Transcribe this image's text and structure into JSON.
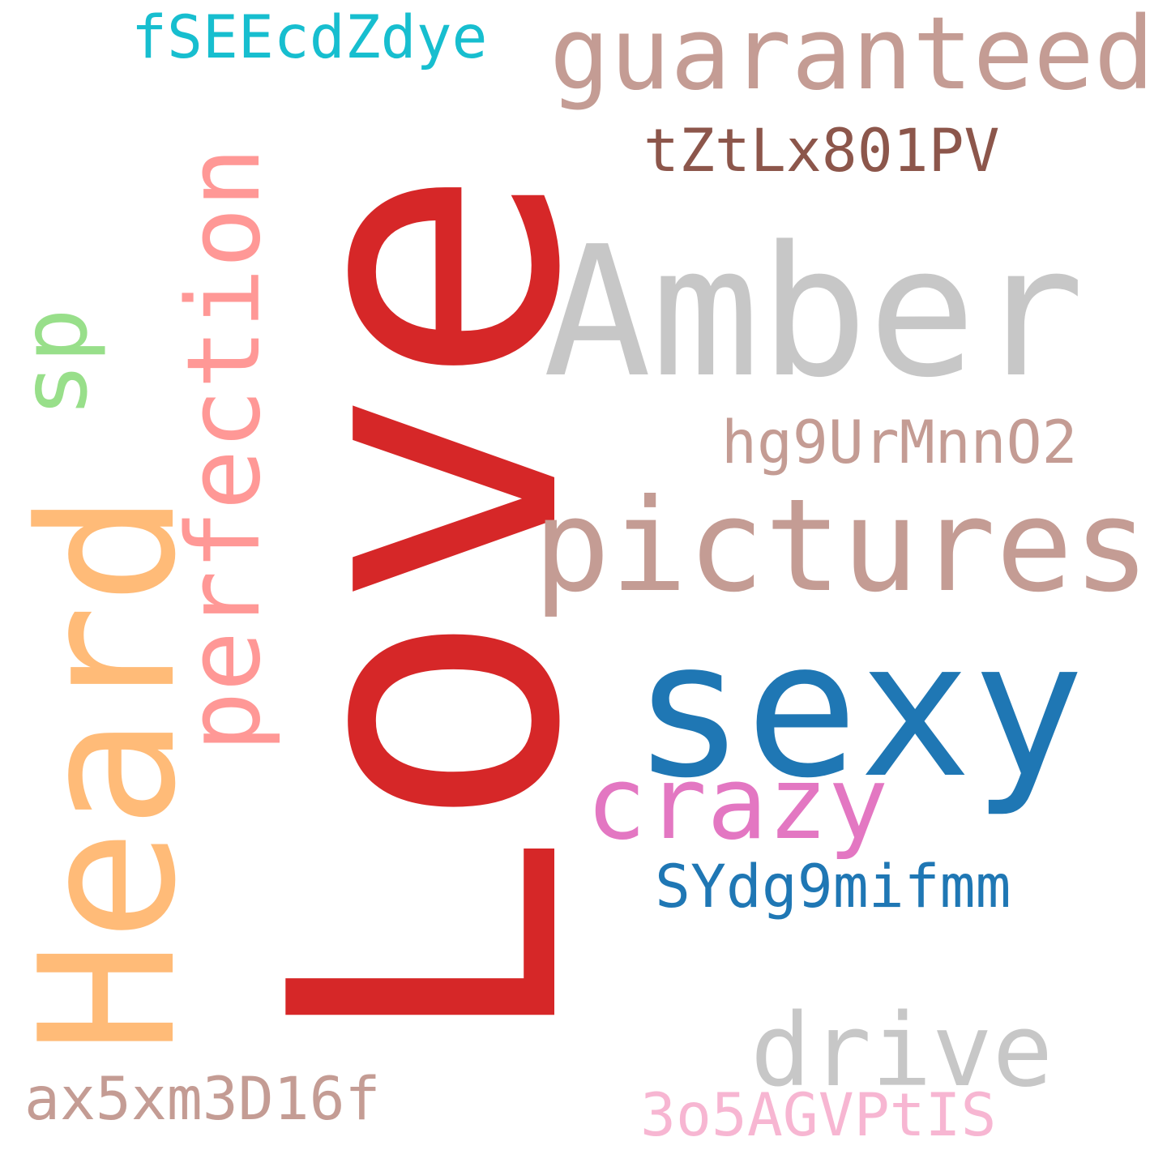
{
  "words": [
    {
      "text": "Love",
      "color": "#d62728"
    },
    {
      "text": "Amber",
      "color": "#c7c7c7"
    },
    {
      "text": "Heard",
      "color": "#ffbb78"
    },
    {
      "text": "sexy",
      "color": "#1f77b4"
    },
    {
      "text": "pictures",
      "color": "#c49c94"
    },
    {
      "text": "guaranteed",
      "color": "#c49c94"
    },
    {
      "text": "perfection",
      "color": "#ff9896"
    },
    {
      "text": "crazy",
      "color": "#e377c2"
    },
    {
      "text": "drive",
      "color": "#c7c7c7"
    },
    {
      "text": "sp",
      "color": "#98df8a"
    },
    {
      "text": "fSEEcdZdye",
      "color": "#17becf"
    },
    {
      "text": "tZtLx801PV",
      "color": "#8c564b"
    },
    {
      "text": "hg9UrMnnO2",
      "color": "#c49c94"
    },
    {
      "text": "SYdg9mifmm",
      "color": "#1f77b4"
    },
    {
      "text": "ax5xm3D16f",
      "color": "#c49c94"
    },
    {
      "text": "3o5AGVPtIS",
      "color": "#f7b6d2"
    }
  ]
}
